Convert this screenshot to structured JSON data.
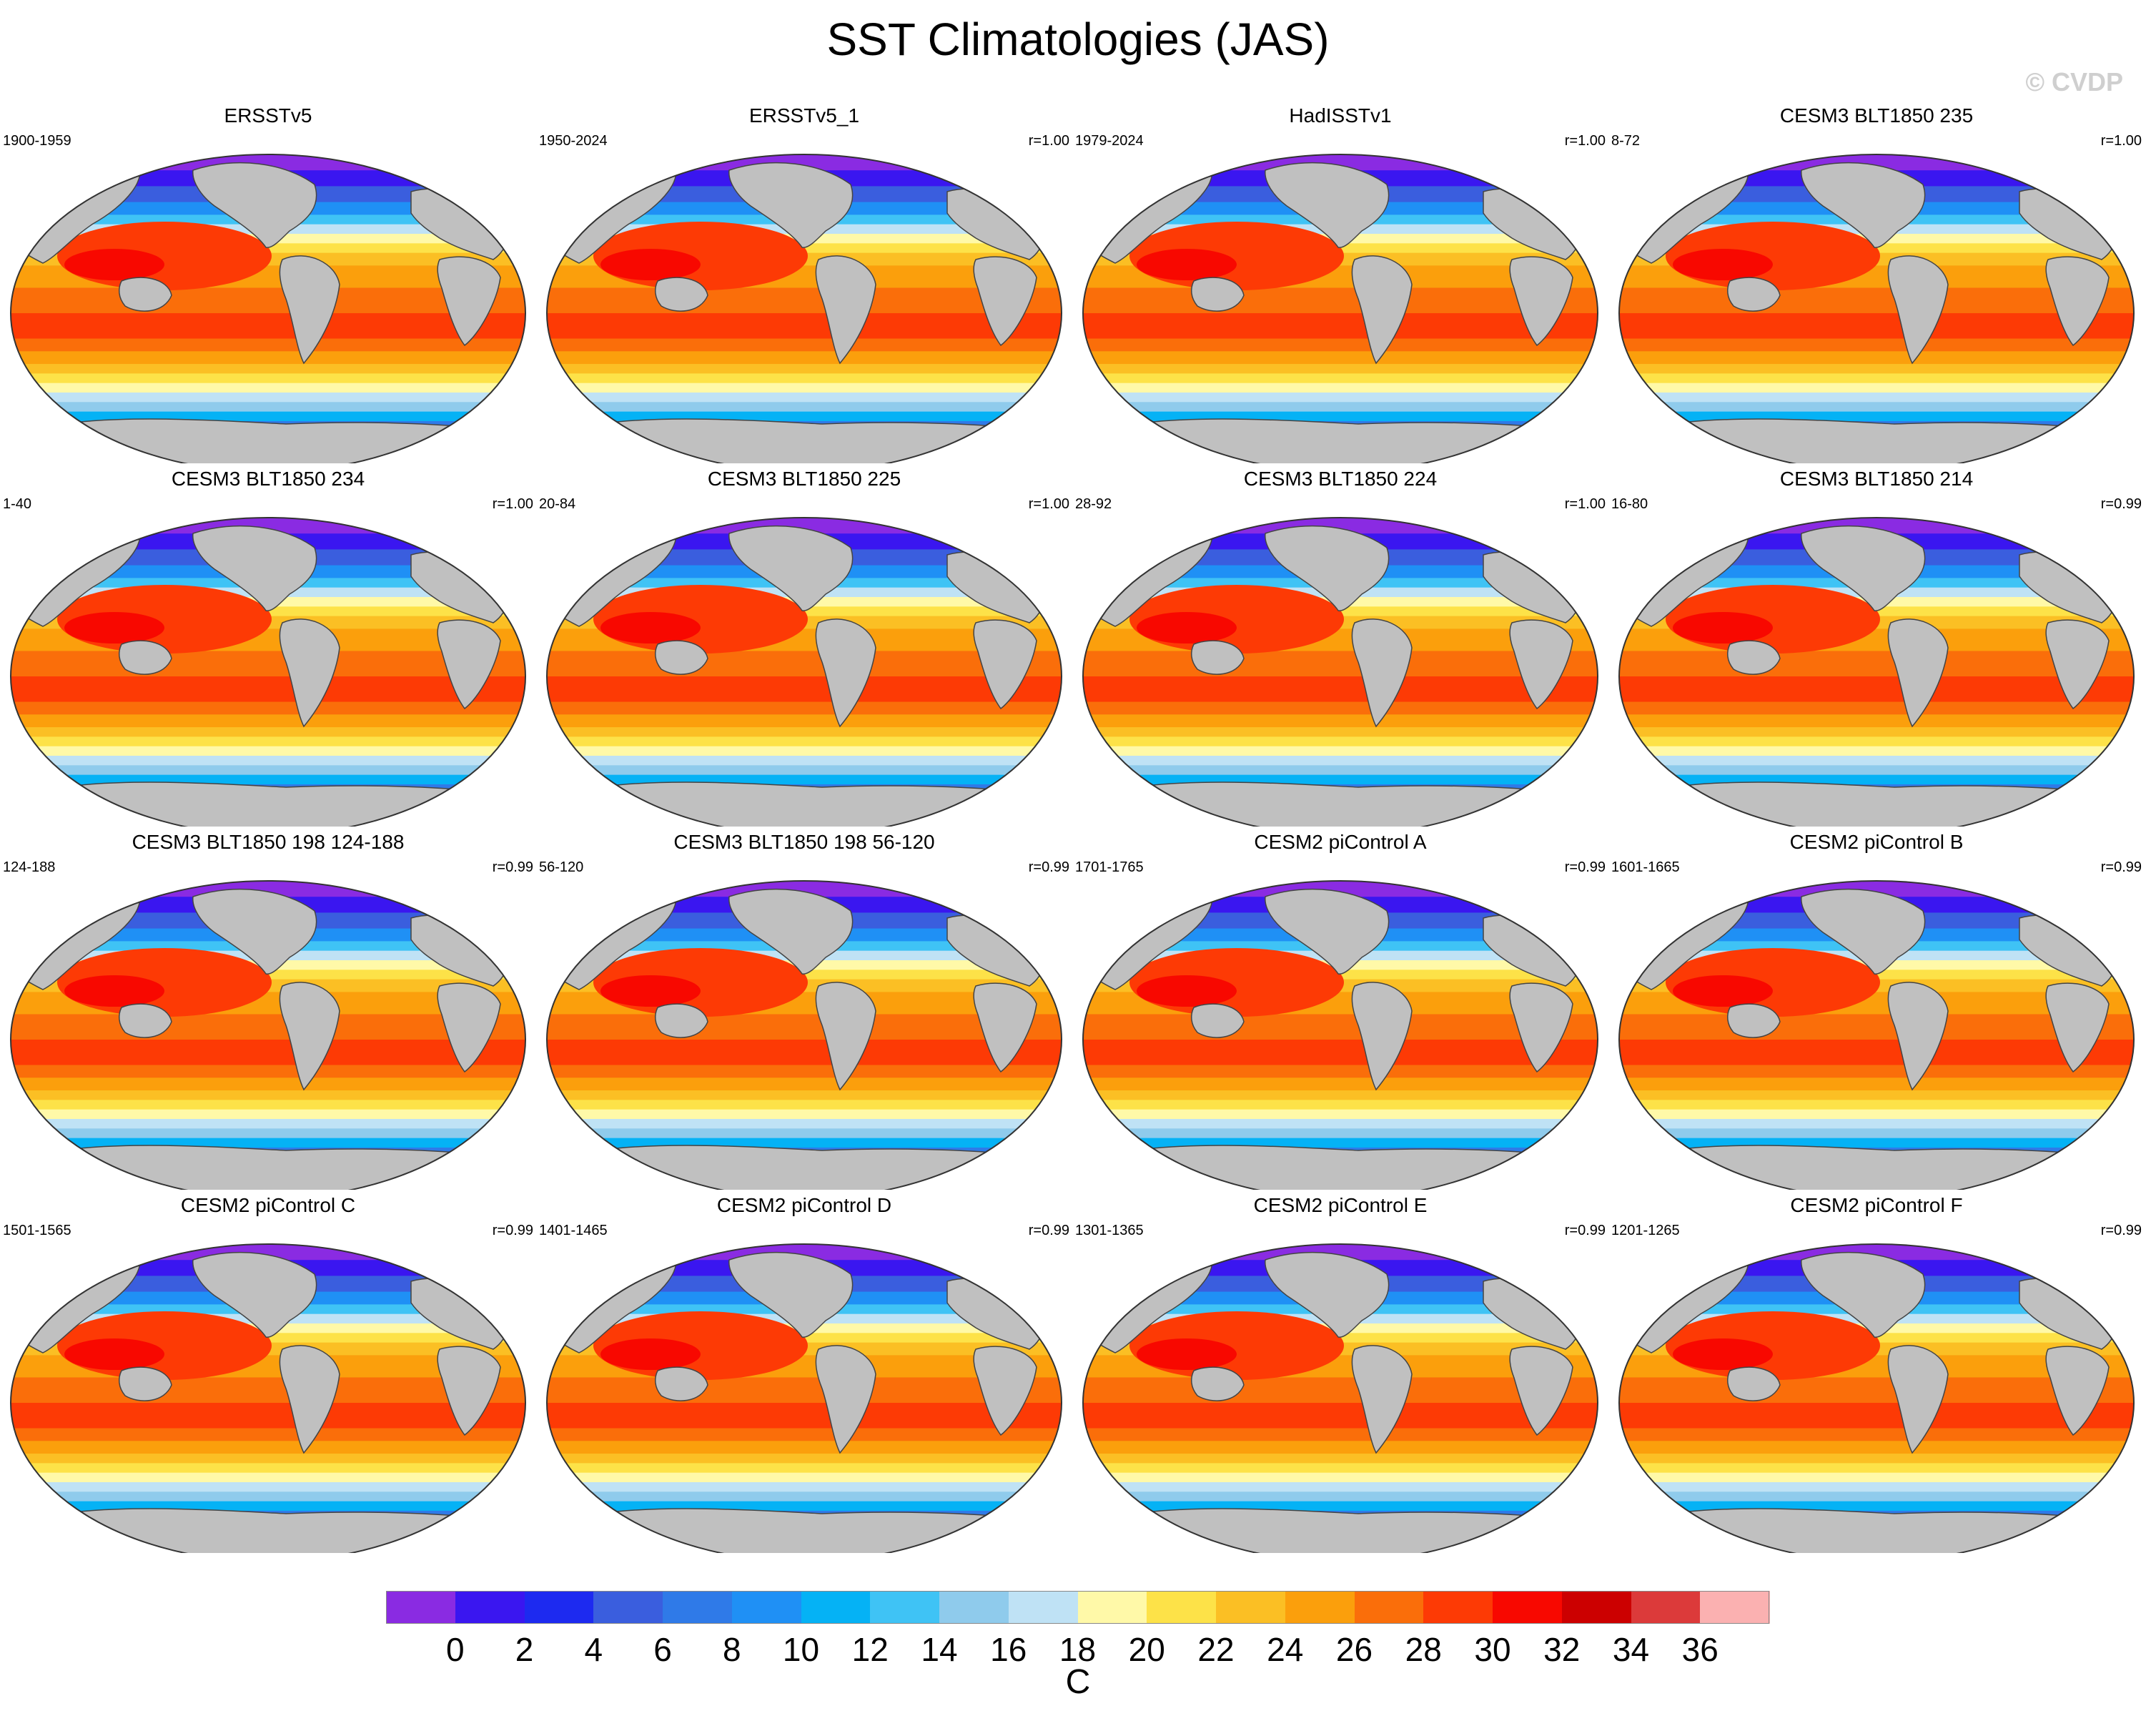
{
  "title": "SST Climatologies (JAS)",
  "watermark": "© CVDP",
  "panels": [
    {
      "title": "ERSSTv5",
      "period": "1900-1959",
      "r": ""
    },
    {
      "title": "ERSSTv5_1",
      "period": "1950-2024",
      "r": "r=1.00"
    },
    {
      "title": "HadISSTv1",
      "period": "1979-2024",
      "r": "r=1.00"
    },
    {
      "title": "CESM3 BLT1850 235",
      "period": "8-72",
      "r": "r=1.00"
    },
    {
      "title": "CESM3 BLT1850 234",
      "period": "1-40",
      "r": "r=1.00"
    },
    {
      "title": "CESM3 BLT1850 225",
      "period": "20-84",
      "r": "r=1.00"
    },
    {
      "title": "CESM3 BLT1850 224",
      "period": "28-92",
      "r": "r=1.00"
    },
    {
      "title": "CESM3 BLT1850 214",
      "period": "16-80",
      "r": "r=0.99"
    },
    {
      "title": "CESM3 BLT1850 198 124-188",
      "period": "124-188",
      "r": "r=0.99"
    },
    {
      "title": "CESM3 BLT1850 198 56-120",
      "period": "56-120",
      "r": "r=0.99"
    },
    {
      "title": "CESM2 piControl A",
      "period": "1701-1765",
      "r": "r=0.99"
    },
    {
      "title": "CESM2 piControl B",
      "period": "1601-1665",
      "r": "r=0.99"
    },
    {
      "title": "CESM2 piControl C",
      "period": "1501-1565",
      "r": "r=0.99"
    },
    {
      "title": "CESM2 piControl D",
      "period": "1401-1465",
      "r": "r=0.99"
    },
    {
      "title": "CESM2 piControl E",
      "period": "1301-1365",
      "r": "r=0.99"
    },
    {
      "title": "CESM2 piControl F",
      "period": "1201-1265",
      "r": "r=0.99"
    }
  ],
  "colorbar": {
    "colors": [
      "#8a2be2",
      "#3a16f0",
      "#1d2af0",
      "#3a5ede",
      "#2f7ae8",
      "#1f90f5",
      "#05b2f5",
      "#3fc3f5",
      "#8fcbec",
      "#bfe2f5",
      "#fff9a8",
      "#fde248",
      "#fbbf24",
      "#fb9f0c",
      "#fa6e0a",
      "#fd3a05",
      "#f80800",
      "#cc0000",
      "#dc3a3a",
      "#fbb1b1"
    ],
    "ticks": [
      "0",
      "2",
      "4",
      "6",
      "8",
      "10",
      "12",
      "14",
      "16",
      "18",
      "20",
      "22",
      "24",
      "26",
      "28",
      "30",
      "32",
      "34",
      "36"
    ],
    "units": "C"
  }
}
